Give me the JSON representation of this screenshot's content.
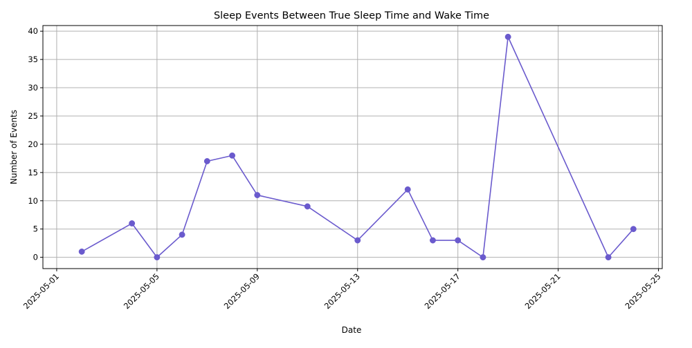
{
  "chart_data": {
    "type": "line",
    "title": "Sleep Events Between True Sleep Time and Wake Time",
    "xlabel": "Date",
    "ylabel": "Number of Events",
    "xlim": [
      "2025-04-30",
      "2025-05-25"
    ],
    "ylim": [
      -2,
      41
    ],
    "x_ticks": [
      "2025-05-01",
      "2025-05-05",
      "2025-05-09",
      "2025-05-13",
      "2025-05-17",
      "2025-05-21",
      "2025-05-25"
    ],
    "y_ticks": [
      0,
      5,
      10,
      15,
      20,
      25,
      30,
      35,
      40
    ],
    "grid": true,
    "line_color": "#6a5acd",
    "marker": "circle",
    "x": [
      "2025-05-02",
      "2025-05-04",
      "2025-05-05",
      "2025-05-06",
      "2025-05-07",
      "2025-05-08",
      "2025-05-09",
      "2025-05-11",
      "2025-05-13",
      "2025-05-15",
      "2025-05-16",
      "2025-05-17",
      "2025-05-18",
      "2025-05-19",
      "2025-05-23",
      "2025-05-24"
    ],
    "y": [
      1,
      6,
      0,
      4,
      17,
      18,
      11,
      9,
      3,
      12,
      3,
      3,
      0,
      39,
      0,
      5
    ]
  }
}
